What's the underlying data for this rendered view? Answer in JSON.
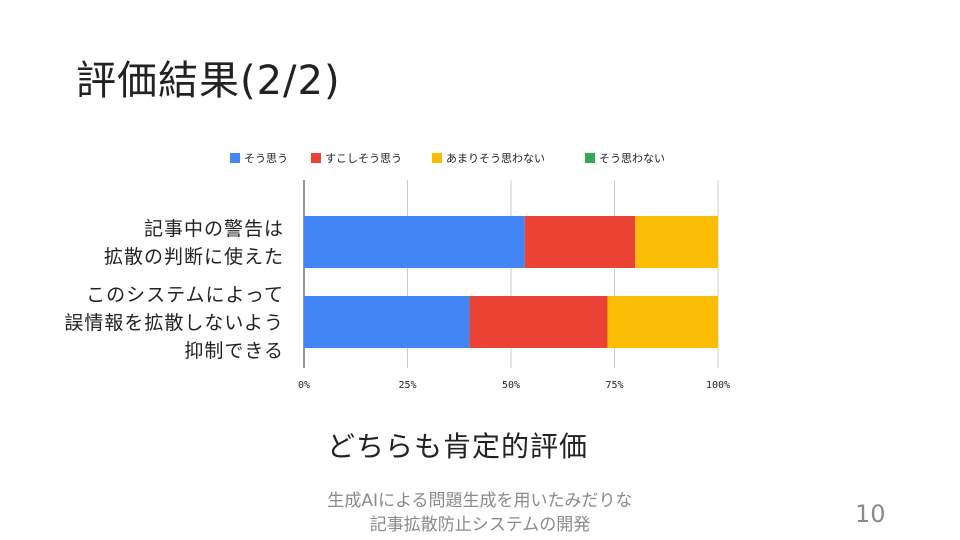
{
  "slide": {
    "title": "評価結果(2/2)",
    "conclusion": "どちらも肯定的評価",
    "footer_line1": "生成AIによる問題生成を用いたみだりな",
    "footer_line2": "記事拡散防止システムの開発",
    "page_number": "10"
  },
  "chart_data": {
    "type": "bar",
    "orientation": "horizontal",
    "stacked": "percent",
    "categories": [
      [
        "記事中の警告は",
        "拡散の判断に使えた"
      ],
      [
        "このシステムによって",
        "誤情報を拡散しないよう",
        "抑制できる"
      ]
    ],
    "series": [
      {
        "name": "そう思う",
        "color": "#4285f4",
        "values": [
          53.3,
          40.0
        ]
      },
      {
        "name": "すこしそう思う",
        "color": "#ea4335",
        "values": [
          26.7,
          33.3
        ]
      },
      {
        "name": "あまりそう思わない",
        "color": "#fbbc04",
        "values": [
          20.0,
          26.7
        ]
      },
      {
        "name": "そう思わない",
        "color": "#34a853",
        "values": [
          0,
          0
        ]
      }
    ],
    "xlim": [
      0,
      100
    ],
    "x_ticks": [
      "0%",
      "25%",
      "50%",
      "75%",
      "100%"
    ],
    "grid": true,
    "legend_position": "top"
  }
}
